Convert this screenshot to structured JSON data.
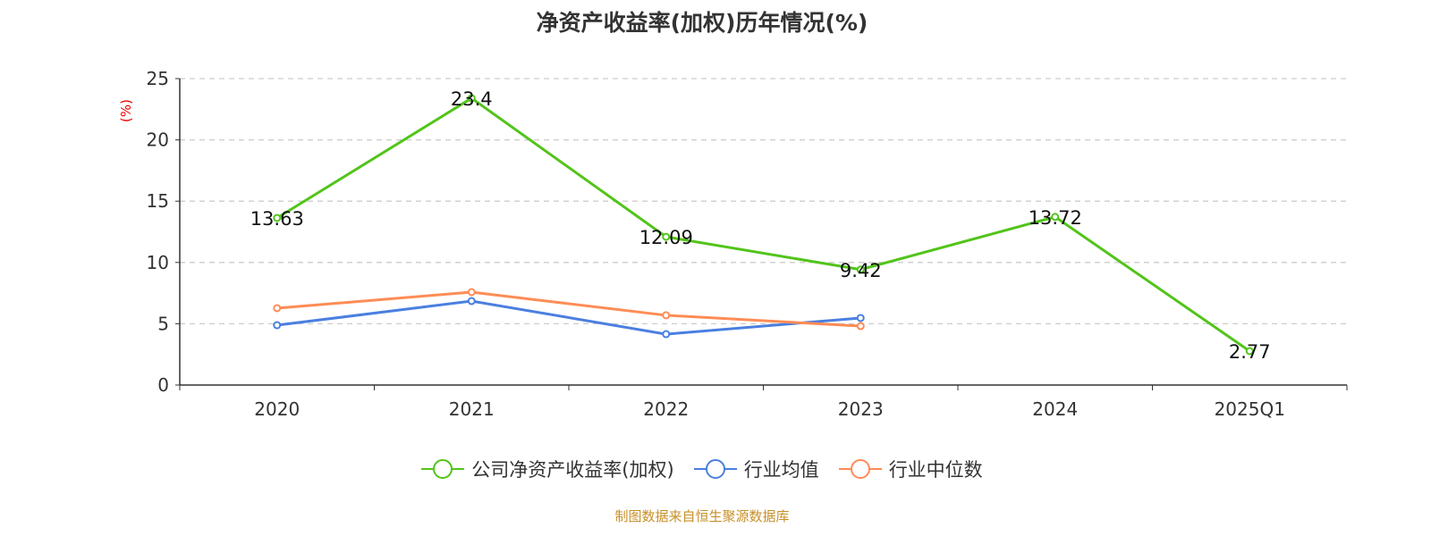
{
  "chart_data": {
    "type": "line",
    "title": "净资产收益率(加权)历年情况(%)",
    "ylabel": "(%)",
    "xlabel": "",
    "categories": [
      "2020",
      "2021",
      "2022",
      "2023",
      "2024",
      "2025Q1"
    ],
    "ylim": [
      0,
      25
    ],
    "yticks": [
      0,
      5,
      10,
      15,
      20,
      25
    ],
    "grid": true,
    "legend_position": "bottom",
    "series": [
      {
        "name": "公司净资产收益率(加权)",
        "color": "#52c41a",
        "values": [
          13.63,
          23.4,
          12.09,
          9.42,
          13.72,
          2.77
        ],
        "labels": [
          "13.63",
          "23.4",
          "12.09",
          "9.42",
          "13.72",
          "2.77"
        ]
      },
      {
        "name": "行业均值",
        "color": "#4a7fe0",
        "values": [
          4.88,
          6.85,
          4.15,
          5.47,
          null,
          null
        ]
      },
      {
        "name": "行业中位数",
        "color": "#ff8c55",
        "values": [
          6.27,
          7.58,
          5.69,
          4.81,
          null,
          null
        ]
      }
    ]
  },
  "source": "制图数据来自恒生聚源数据库"
}
